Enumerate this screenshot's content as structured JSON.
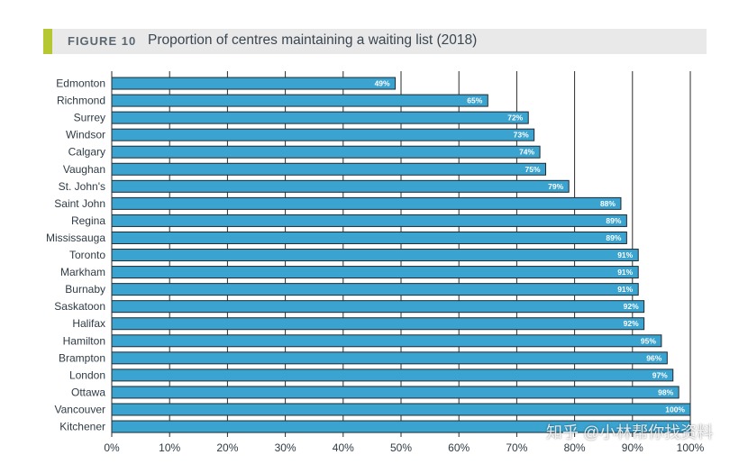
{
  "figure": {
    "label": "FIGURE 10",
    "title": "Proportion of centres maintaining a waiting list (2018)",
    "accent_color": "#b5c832"
  },
  "watermark": "知乎 @小林帮你找资料",
  "chart_data": {
    "type": "bar",
    "orientation": "horizontal",
    "categories": [
      "Edmonton",
      "Richmond",
      "Surrey",
      "Windsor",
      "Calgary",
      "Vaughan",
      "St. John's",
      "Saint John",
      "Regina",
      "Mississauga",
      "Toronto",
      "Markham",
      "Burnaby",
      "Saskatoon",
      "Halifax",
      "Hamilton",
      "Brampton",
      "London",
      "Ottawa",
      "Vancouver",
      "Kitchener"
    ],
    "values": [
      49,
      65,
      72,
      73,
      74,
      75,
      79,
      88,
      89,
      89,
      91,
      91,
      91,
      92,
      92,
      95,
      96,
      97,
      98,
      100,
      100
    ],
    "data_labels": [
      "49%",
      "65%",
      "72%",
      "73%",
      "74%",
      "75%",
      "79%",
      "88%",
      "89%",
      "89%",
      "91%",
      "91%",
      "91%",
      "92%",
      "92%",
      "95%",
      "96%",
      "97%",
      "98%",
      "100%",
      ""
    ],
    "xlim": [
      0,
      100
    ],
    "x_ticks": [
      "0%",
      "10%",
      "20%",
      "30%",
      "40%",
      "50%",
      "60%",
      "70%",
      "80%",
      "90%",
      "100%"
    ],
    "grid": "vertical",
    "bar_color": "#3aa3cf",
    "bar_edge_color": "#1f2a33"
  }
}
